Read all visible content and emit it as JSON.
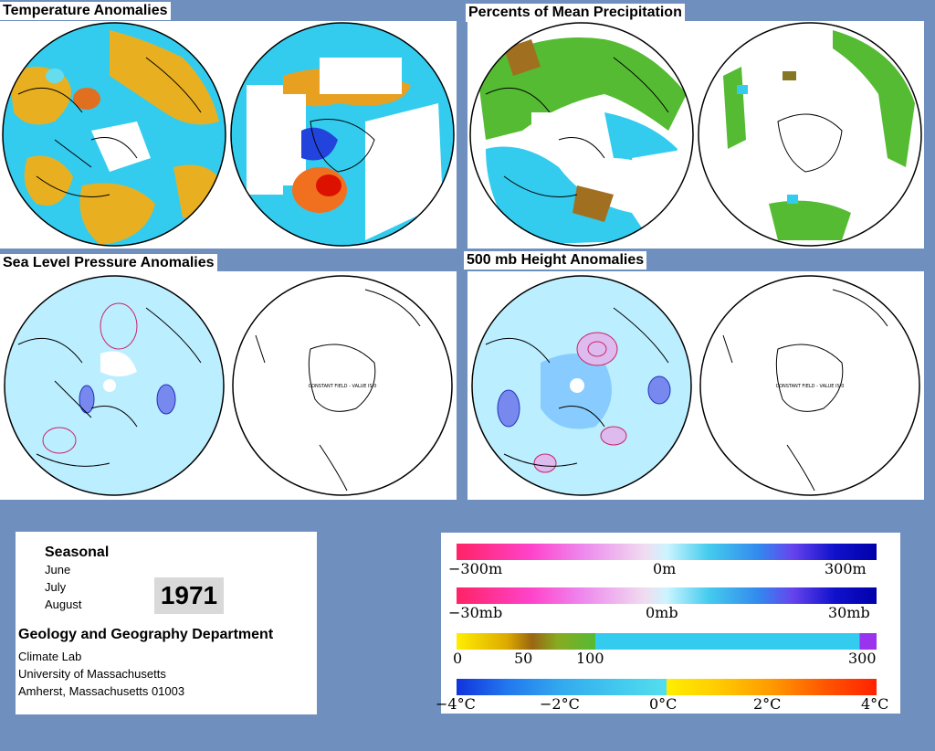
{
  "panels": {
    "temperature": {
      "title": "Temperature Anomalies"
    },
    "precipitation": {
      "title": "Percents of Mean Precipitation"
    },
    "slp": {
      "title": "Sea Level Pressure Anomalies",
      "constant_note": "CONSTANT FIELD - VALUE IS 0"
    },
    "height500": {
      "title": "500 mb Height Anomalies",
      "constant_note": "CONSTANT FIELD - VALUE IS 0"
    }
  },
  "info": {
    "seasonal": "Seasonal",
    "months": [
      "June",
      "July",
      "August"
    ],
    "year": "1971",
    "department": "Geology and Geography Department",
    "address": [
      "Climate Lab",
      "University of Massachusetts",
      "Amherst, Massachusetts 01003"
    ]
  },
  "legends": [
    {
      "name": "height",
      "labels": [
        "−300m",
        "0m",
        "300m"
      ]
    },
    {
      "name": "pressure",
      "labels": [
        "−30mb",
        "0mb",
        "30mb"
      ]
    },
    {
      "name": "precip",
      "labels": [
        "0",
        "50",
        "100",
        "300"
      ]
    },
    {
      "name": "temperature",
      "labels": [
        "−4°C",
        "−2°C",
        "0°C",
        "2°C",
        "4°C"
      ]
    }
  ],
  "colors": {
    "background": "#6f8fbf",
    "warm": "#e8a020",
    "cool": "#33ccee",
    "height_pos": "#cc2266",
    "height_neg": "#2233bb"
  }
}
